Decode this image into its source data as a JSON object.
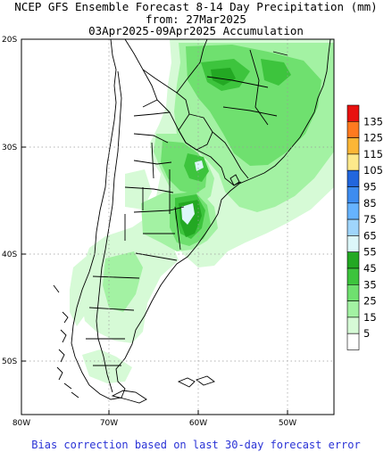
{
  "title": {
    "line1": "NCEP GFS Ensemble Forecast 8-14 Day Precipitation (mm)",
    "line2": "from: 27Mar2025",
    "line3": "03Apr2025-09Apr2025 Accumulation"
  },
  "lat_labels": [
    "20S",
    "30S",
    "40S",
    "50S"
  ],
  "lon_labels": [
    "80W",
    "70W",
    "60W",
    "50W"
  ],
  "legend": {
    "levels": [
      "135",
      "125",
      "115",
      "105",
      "95",
      "85",
      "75",
      "65",
      "55",
      "45",
      "35",
      "25",
      "15",
      "5"
    ],
    "colors": [
      "#e8110f",
      "#ff7a1f",
      "#fbb636",
      "#fde98b",
      "#2266dd",
      "#3d8cf0",
      "#66b3ff",
      "#9fd5fb",
      "#dcf7f9",
      "#23a823",
      "#3dc43d",
      "#6fe06f",
      "#a3f2a3",
      "#d6fad6",
      "#ffffff"
    ]
  },
  "map_colors": {
    "land": "#ffffff",
    "ocean": "#ffffff",
    "border": "#000000",
    "grid": "#9a9a9a"
  },
  "footer": "Bias correction based on last 30-day forecast error"
}
